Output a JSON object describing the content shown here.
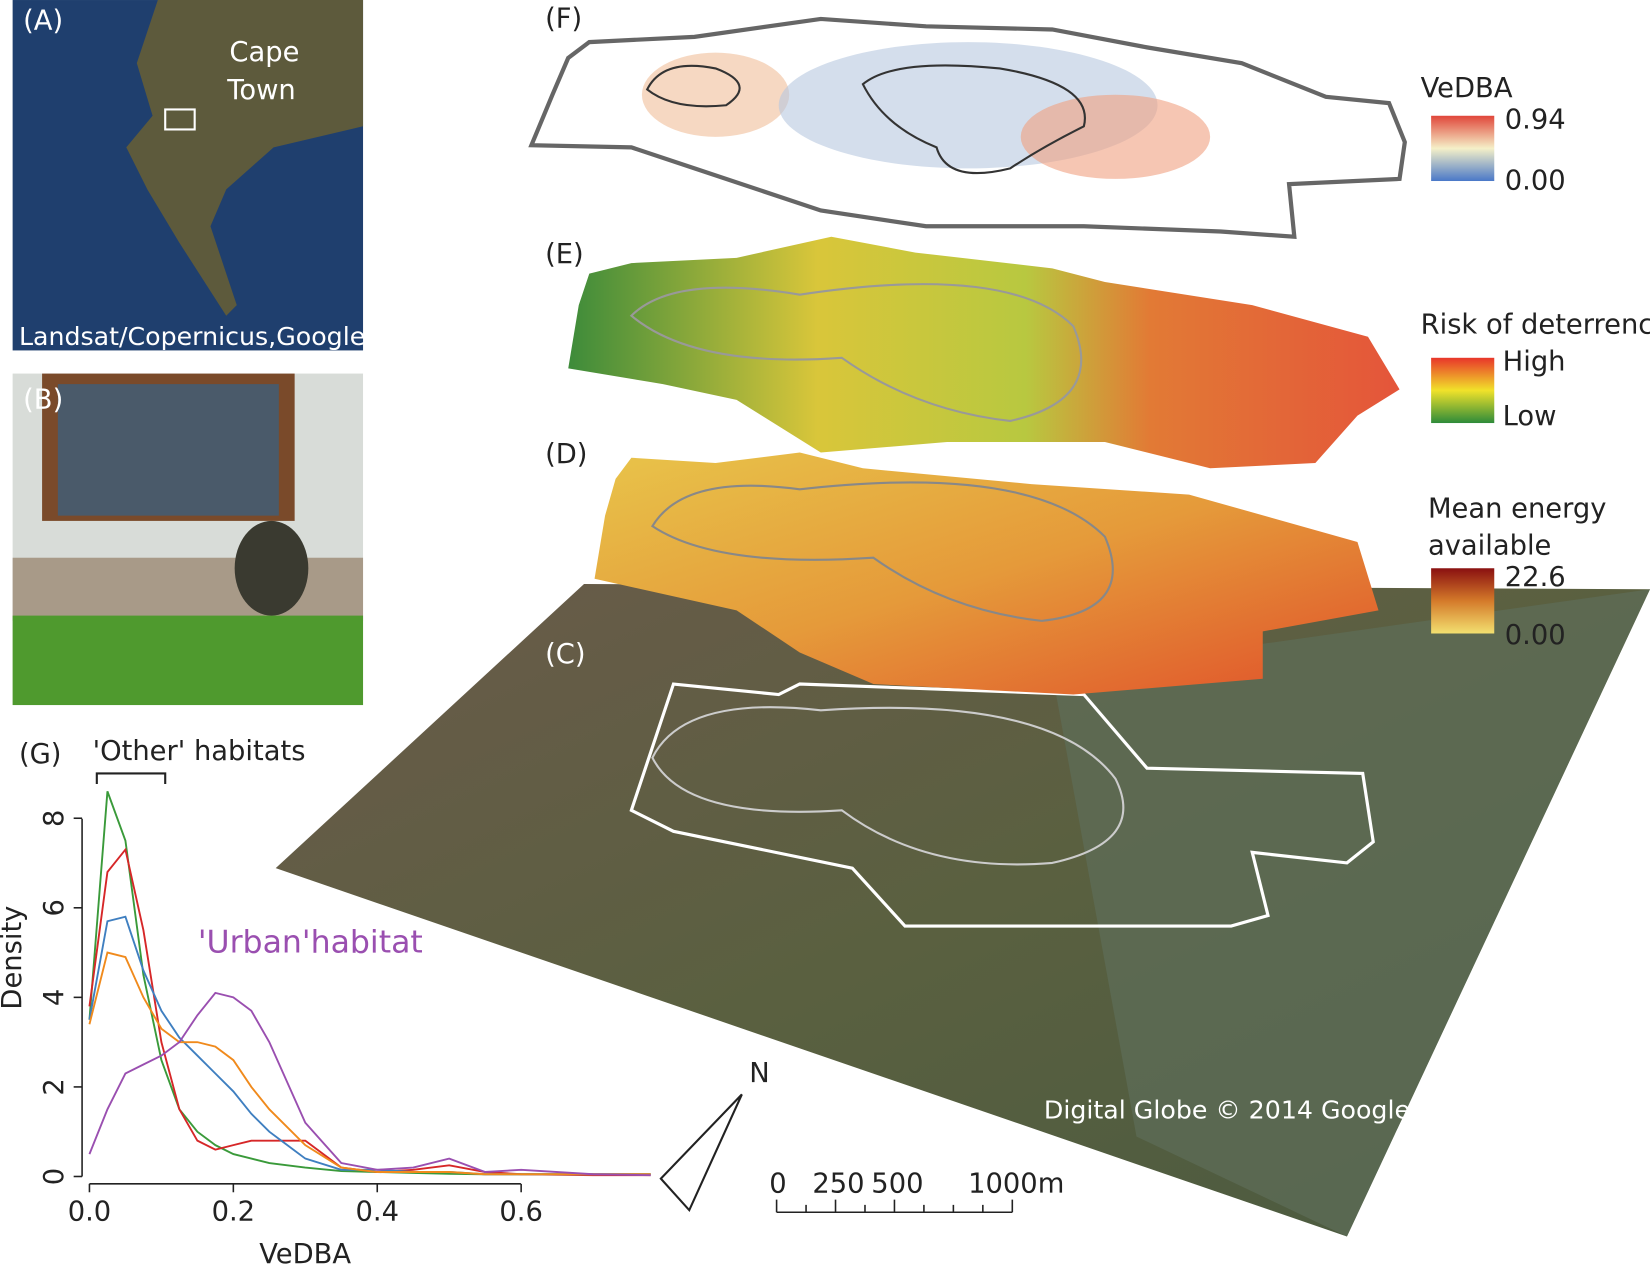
{
  "panel_a": {
    "label": "(A)",
    "city": [
      "Cape",
      "Town"
    ],
    "credit": "Landsat/Copernicus,Google"
  },
  "panel_b": {
    "label": "(B)"
  },
  "panel_c": {
    "label": "(C)",
    "credit": "Digital Globe © 2014 Google",
    "north": "N",
    "scale": [
      "0",
      "250",
      "500",
      "1000m"
    ]
  },
  "panel_d": {
    "label": "(D)",
    "legend_title": [
      "Mean energy",
      "available"
    ],
    "legend_high": "22.6",
    "legend_low": "0.00"
  },
  "panel_e": {
    "label": "(E)",
    "legend_title": "Risk of deterrence",
    "legend_high": "High",
    "legend_low": "Low"
  },
  "panel_f": {
    "label": "(F)",
    "legend_title": "VeDBA",
    "legend_high": "0.94",
    "legend_low": "0.00"
  },
  "chart_data": {
    "type": "line",
    "panel_label": "(G)",
    "x_label": "VeDBA",
    "y_label": "Density",
    "annotations": [
      "'Other' habitats",
      "'Urban'habitat"
    ],
    "x": [
      0,
      0.025,
      0.05,
      0.075,
      0.1,
      0.125,
      0.15,
      0.175,
      0.2,
      0.225,
      0.25,
      0.3,
      0.35,
      0.4,
      0.45,
      0.5,
      0.55,
      0.6,
      0.7,
      0.78
    ],
    "series": [
      {
        "color": "#3a9a3a",
        "values": [
          3.5,
          8.6,
          7.5,
          4.5,
          2.6,
          1.5,
          1.0,
          0.7,
          0.5,
          0.4,
          0.3,
          0.2,
          0.12,
          0.1,
          0.08,
          0.06,
          0.05,
          0.05,
          0.05,
          0.05
        ]
      },
      {
        "color": "#d62728",
        "values": [
          3.8,
          6.8,
          7.3,
          5.5,
          3.0,
          1.5,
          0.8,
          0.6,
          0.7,
          0.8,
          0.8,
          0.8,
          0.2,
          0.1,
          0.15,
          0.25,
          0.1,
          0.05,
          0.03,
          0.03
        ]
      },
      {
        "color": "#3f7fc0",
        "values": [
          3.5,
          5.7,
          5.8,
          4.6,
          3.7,
          3.1,
          2.7,
          2.3,
          1.9,
          1.4,
          1.0,
          0.4,
          0.15,
          0.15,
          0.1,
          0.1,
          0.05,
          0.05,
          0.05,
          0.05
        ]
      },
      {
        "color": "#f08a1c",
        "values": [
          3.4,
          5.0,
          4.9,
          4.0,
          3.3,
          3.0,
          3.0,
          2.9,
          2.6,
          2.0,
          1.5,
          0.7,
          0.2,
          0.1,
          0.1,
          0.1,
          0.05,
          0.05,
          0.05,
          0.05
        ]
      },
      {
        "color": "#9a4fb0",
        "values": [
          0.5,
          1.5,
          2.3,
          2.5,
          2.7,
          3.0,
          3.6,
          4.1,
          4.0,
          3.7,
          3.0,
          1.2,
          0.3,
          0.15,
          0.2,
          0.4,
          0.1,
          0.15,
          0.05,
          0.03
        ]
      }
    ],
    "xlim": [
      0,
      0.8
    ],
    "ylim": [
      0,
      9
    ],
    "xticks": [
      {
        "value": 0,
        "label": "0.0"
      },
      0.2,
      0.4,
      0.6
    ],
    "yticks": [
      0,
      2,
      4,
      6,
      8
    ]
  }
}
